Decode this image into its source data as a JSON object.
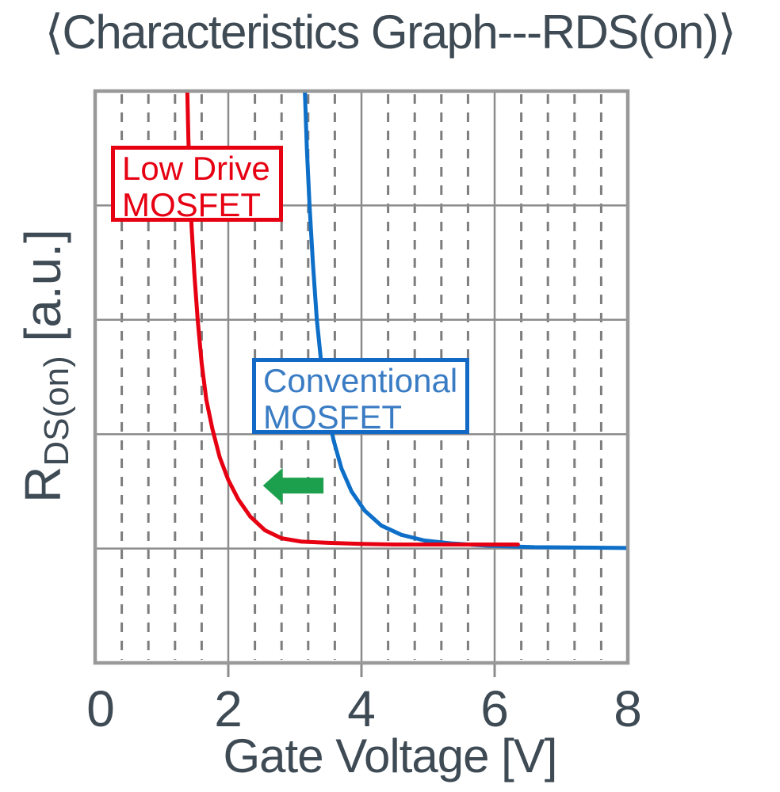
{
  "title": "⟨Characteristics Graph---RDS(on)⟩",
  "colors": {
    "text": "#3e4a54",
    "grid_major": "#8c8c8c",
    "grid_minor": "#7d7d7d",
    "plot_border": "#999999",
    "low_drive_red": "#e60012",
    "conventional_blue": "#0e6fc8",
    "blue_box_border": "#1269c6",
    "blue_box_text": "#3a7cc4",
    "arrow_green": "#1ca04d",
    "background": "#ffffff"
  },
  "chart_data": {
    "type": "line",
    "title": "⟨Characteristics Graph---RDS(on)⟩",
    "xlabel": "Gate Voltage [V]",
    "ylabel_main": "R",
    "ylabel_sub": "DS(on)",
    "ylabel_unit": " [a.u.]",
    "xlim": [
      0,
      8
    ],
    "ylim": [
      0,
      5
    ],
    "x_major_step": 2,
    "x_minor_step": 0.4,
    "y_major_step": 1,
    "x_tick_labels": [
      "0",
      "2",
      "4",
      "6",
      "8"
    ],
    "grid": "vertical major solid, vertical minor dashed, horizontal major solid",
    "legend_position": "inline label boxes",
    "series": [
      {
        "name": "Low Drive MOSFET",
        "label_lines": [
          "Low Drive",
          "MOSFET"
        ],
        "color": "#e60012",
        "points": [
          [
            1.385,
            5.0
          ],
          [
            1.4,
            4.6
          ],
          [
            1.42,
            4.2
          ],
          [
            1.45,
            3.8
          ],
          [
            1.49,
            3.4
          ],
          [
            1.54,
            3.0
          ],
          [
            1.6,
            2.62
          ],
          [
            1.67,
            2.3
          ],
          [
            1.76,
            2.05
          ],
          [
            1.87,
            1.8
          ],
          [
            2.0,
            1.6
          ],
          [
            2.15,
            1.43
          ],
          [
            2.33,
            1.28
          ],
          [
            2.55,
            1.16
          ],
          [
            2.8,
            1.09
          ],
          [
            3.1,
            1.06
          ],
          [
            3.5,
            1.05
          ],
          [
            4.0,
            1.04
          ],
          [
            4.5,
            1.035
          ],
          [
            5.5,
            1.035
          ],
          [
            6.35,
            1.035
          ]
        ]
      },
      {
        "name": "Conventional MOSFET",
        "label_lines": [
          "Conventional",
          "MOSFET"
        ],
        "color": "#0e6fc8",
        "points": [
          [
            3.15,
            5.0
          ],
          [
            3.18,
            4.5
          ],
          [
            3.22,
            4.0
          ],
          [
            3.27,
            3.5
          ],
          [
            3.33,
            3.0
          ],
          [
            3.4,
            2.6
          ],
          [
            3.5,
            2.18
          ],
          [
            3.58,
            1.95
          ],
          [
            3.7,
            1.7
          ],
          [
            3.85,
            1.5
          ],
          [
            4.05,
            1.33
          ],
          [
            4.3,
            1.2
          ],
          [
            4.6,
            1.12
          ],
          [
            4.95,
            1.07
          ],
          [
            5.35,
            1.045
          ],
          [
            5.9,
            1.025
          ],
          [
            6.6,
            1.012
          ],
          [
            8.0,
            1.005
          ]
        ]
      }
    ],
    "annotation_arrow": {
      "direction": "left",
      "color": "#1ca04d",
      "x_tail": 3.43,
      "x_tip": 2.52,
      "y": 1.55,
      "meaning": "RDS(on) curve shifts toward lower gate voltage"
    }
  }
}
